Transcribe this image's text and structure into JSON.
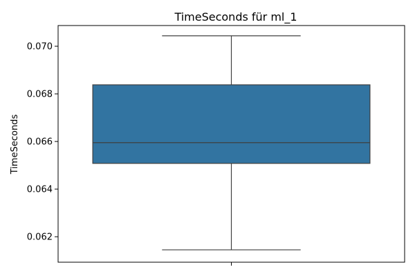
{
  "chart_data": {
    "type": "box",
    "title": "TimeSeconds für ml_1",
    "xlabel": "",
    "ylabel": "TimeSeconds",
    "ylim": [
      0.06093,
      0.07087
    ],
    "yticks": [
      0.062,
      0.064,
      0.066,
      0.068,
      0.07
    ],
    "ytick_labels": [
      "0.062",
      "0.064",
      "0.066",
      "0.068",
      "0.070"
    ],
    "xtick_labels": [
      ""
    ],
    "grid": false,
    "series": [
      {
        "box": {
          "whisker_low": 0.06145,
          "q1": 0.06508,
          "median": 0.06595,
          "q3": 0.06838,
          "whisker_high": 0.07044
        },
        "color": "#3274a1"
      }
    ]
  }
}
